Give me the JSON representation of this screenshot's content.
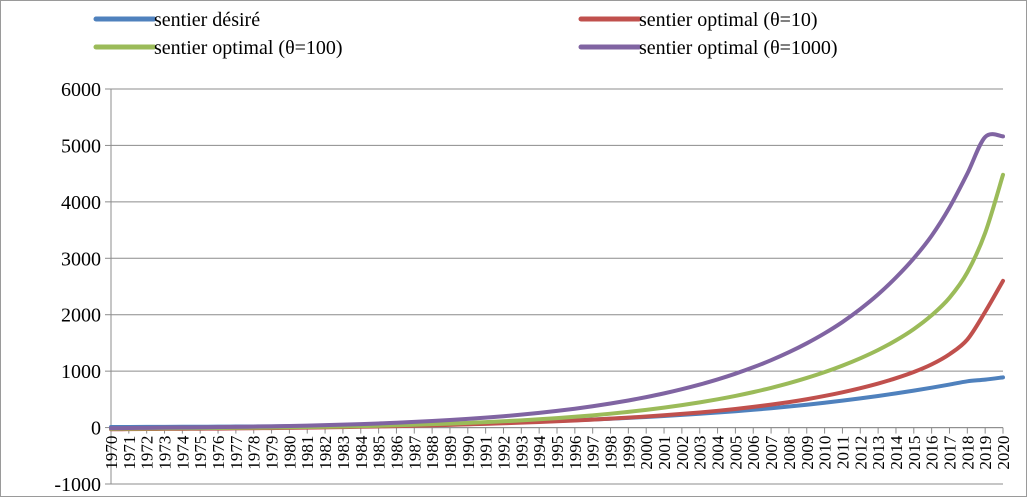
{
  "chart_data": {
    "type": "line",
    "ylim": [
      -1000,
      6000
    ],
    "yticks": [
      -1000,
      0,
      1000,
      2000,
      3000,
      4000,
      5000,
      6000
    ],
    "ytick_labels": [
      "-1000",
      "0",
      "1000",
      "2000",
      "3000",
      "4000",
      "5000",
      "6000"
    ],
    "grid": "horizontal",
    "legend_position": "top",
    "x": [
      1970,
      1971,
      1972,
      1973,
      1974,
      1975,
      1976,
      1977,
      1978,
      1979,
      1980,
      1981,
      1982,
      1983,
      1984,
      1985,
      1986,
      1987,
      1988,
      1989,
      1990,
      1991,
      1992,
      1993,
      1994,
      1995,
      1996,
      1997,
      1998,
      1999,
      2000,
      2001,
      2002,
      2003,
      2004,
      2005,
      2006,
      2007,
      2008,
      2009,
      2010,
      2011,
      2012,
      2013,
      2014,
      2015,
      2016,
      2017,
      2018,
      2019,
      2020
    ],
    "xtick_labels": [
      "1970",
      "1971",
      "1972",
      "1973",
      "1974",
      "1975",
      "1976",
      "1977",
      "1978",
      "1979",
      "1980",
      "1981",
      "1982",
      "1983",
      "1984",
      "1985",
      "1986",
      "1987",
      "1988",
      "1989",
      "1990",
      "1991",
      "1992",
      "1993",
      "1994",
      "1995",
      "1996",
      "1997",
      "1998",
      "1999",
      "2000",
      "2001",
      "2002",
      "2003",
      "2004",
      "2005",
      "2006",
      "2007",
      "2008",
      "2009",
      "2010",
      "2011",
      "2012",
      "2013",
      "2014",
      "2015",
      "2016",
      "2017",
      "2018",
      "2019",
      "2020"
    ],
    "series": [
      {
        "name": "sentier désiré",
        "color": "#4f81bd",
        "values": [
          10,
          11,
          12,
          13,
          14,
          15,
          16,
          18,
          20,
          22,
          25,
          28,
          31,
          35,
          39,
          43,
          48,
          53,
          59,
          65,
          72,
          80,
          88,
          97,
          107,
          118,
          130,
          143,
          157,
          172,
          188,
          205,
          224,
          244,
          266,
          290,
          315,
          343,
          373,
          405,
          440,
          477,
          517,
          560,
          606,
          655,
          707,
          762,
          820,
          850,
          890
        ]
      },
      {
        "name": "sentier optimal (θ=10)",
        "color": "#c0504d",
        "values": [
          -30,
          -28,
          -26,
          -24,
          -22,
          -20,
          -18,
          -15,
          -12,
          -9,
          -6,
          -2,
          3,
          8,
          14,
          20,
          26,
          33,
          40,
          48,
          57,
          66,
          76,
          87,
          99,
          112,
          126,
          141,
          158,
          176,
          196,
          218,
          242,
          268,
          297,
          330,
          366,
          406,
          451,
          502,
          560,
          625,
          698,
          780,
          875,
          985,
          1120,
          1300,
          1560,
          2050,
          2600
        ]
      },
      {
        "name": "sentier optimal (θ=100)",
        "color": "#9bbb59",
        "values": [
          -20,
          -18,
          -16,
          -14,
          -12,
          -10,
          -7,
          -4,
          -1,
          2,
          6,
          10,
          15,
          20,
          26,
          33,
          41,
          50,
          60,
          71,
          83,
          96,
          111,
          128,
          147,
          168,
          191,
          217,
          246,
          278,
          314,
          354,
          398,
          447,
          501,
          561,
          628,
          703,
          786,
          879,
          982,
          1098,
          1228,
          1375,
          1545,
          1745,
          1990,
          2300,
          2750,
          3450,
          4480
        ]
      },
      {
        "name": "sentier optimal (θ=1000)",
        "color": "#8064a2",
        "values": [
          -10,
          -8,
          -5,
          -2,
          1,
          4,
          8,
          12,
          17,
          22,
          28,
          35,
          43,
          52,
          62,
          73,
          86,
          100,
          116,
          134,
          154,
          176,
          201,
          229,
          260,
          295,
          334,
          378,
          426,
          480,
          540,
          606,
          680,
          762,
          853,
          955,
          1068,
          1194,
          1335,
          1493,
          1670,
          1870,
          2100,
          2360,
          2660,
          3000,
          3400,
          3900,
          4500,
          5150,
          5160
        ]
      }
    ]
  }
}
